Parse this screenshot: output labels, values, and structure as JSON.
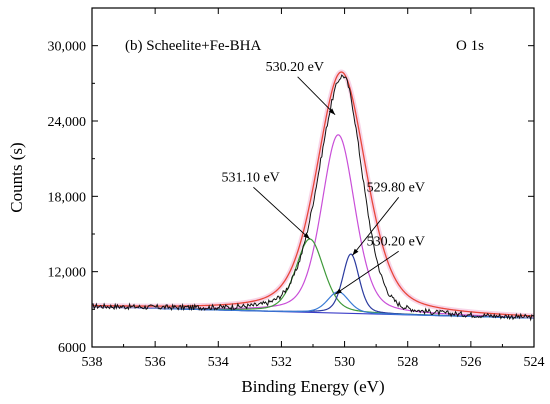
{
  "chart_data": {
    "type": "line",
    "panel_label": "(b)  Scheelite+Fe-BHA",
    "region_label": "O 1s",
    "xlabel": "Binding Energy (eV)",
    "ylabel": "Counts (s)",
    "xlim": [
      538,
      524
    ],
    "ylim": [
      6000,
      33000
    ],
    "x_ticks": [
      538,
      536,
      534,
      532,
      530,
      528,
      526,
      524
    ],
    "y_ticks": [
      {
        "value": 6000,
        "label": "6000"
      },
      {
        "value": 12000,
        "label": "12,000"
      },
      {
        "value": 18000,
        "label": "18,000"
      },
      {
        "value": 24000,
        "label": "24,000"
      },
      {
        "value": 30000,
        "label": "30,000"
      }
    ],
    "baseline": {
      "x": [
        538,
        524
      ],
      "y": [
        9200,
        8300
      ]
    },
    "series": [
      {
        "role": "fit-envelope",
        "color": "#e8463a",
        "peak_center": 530.1,
        "peak_height": 27900
      },
      {
        "role": "measured",
        "color": "#111111",
        "peak_center": 530.05,
        "peak_height": 27600
      },
      {
        "role": "component",
        "color": "#c94fd8",
        "center": 530.2,
        "height": 22900
      },
      {
        "role": "component",
        "color": "#3f9a3a",
        "center": 531.1,
        "height": 14600
      },
      {
        "role": "component",
        "color": "#2b3b9f",
        "center": 529.8,
        "height": 13400
      },
      {
        "role": "component",
        "color": "#3a7bd5",
        "center": 530.2,
        "height": 10400
      }
    ],
    "annotations": [
      {
        "label": "530.20 eV",
        "target": [
          530.3,
          24500
        ],
        "text_at": [
          532.5,
          28000
        ]
      },
      {
        "label": "531.10 eV",
        "target": [
          531.1,
          14600
        ],
        "text_at": [
          533.9,
          19200
        ]
      },
      {
        "label": "529.80 eV",
        "target": [
          529.75,
          13300
        ],
        "text_at": [
          529.3,
          18400
        ]
      },
      {
        "label": "530.20 eV",
        "target": [
          530.3,
          10200
        ],
        "text_at": [
          529.3,
          14100
        ]
      }
    ]
  }
}
